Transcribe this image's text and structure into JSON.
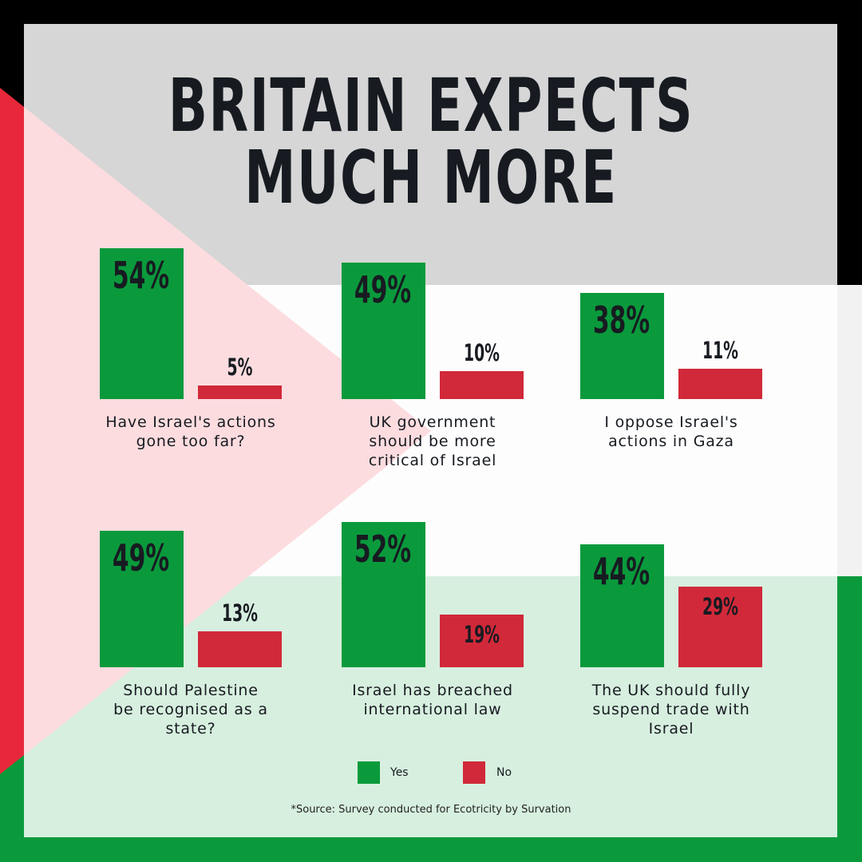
{
  "title_line1": "BRITAIN EXPECTS",
  "title_line2": "MUCH MORE",
  "colors": {
    "yes": "#0a9a3c",
    "no": "#d1293a",
    "flag_red": "#e8283a"
  },
  "chart_data": {
    "type": "bar",
    "title": "BRITAIN EXPECTS MUCH MORE",
    "series_names": [
      "Yes",
      "No"
    ],
    "panels": [
      {
        "question": "Have Israel's actions gone too far?",
        "yes": 54,
        "no": 5,
        "yes_label": "54%",
        "no_label": "5%"
      },
      {
        "question": "UK government should be more critical of Israel",
        "yes": 49,
        "no": 10,
        "yes_label": "49%",
        "no_label": "10%"
      },
      {
        "question": "I oppose Israel's actions in Gaza",
        "yes": 38,
        "no": 11,
        "yes_label": "38%",
        "no_label": "11%"
      },
      {
        "question": "Should Palestine be recognised as a state?",
        "yes": 49,
        "no": 13,
        "yes_label": "49%",
        "no_label": "13%"
      },
      {
        "question": "Israel has breached international law",
        "yes": 52,
        "no": 19,
        "yes_label": "52%",
        "no_label": "19%"
      },
      {
        "question": "The UK should fully suspend trade with Israel",
        "yes": 44,
        "no": 29,
        "yes_label": "44%",
        "no_label": "29%"
      }
    ]
  },
  "legend": {
    "yes_label": "Yes",
    "no_label": "No"
  },
  "source": "*Source: Survey conducted for Ecotricity by Survation"
}
